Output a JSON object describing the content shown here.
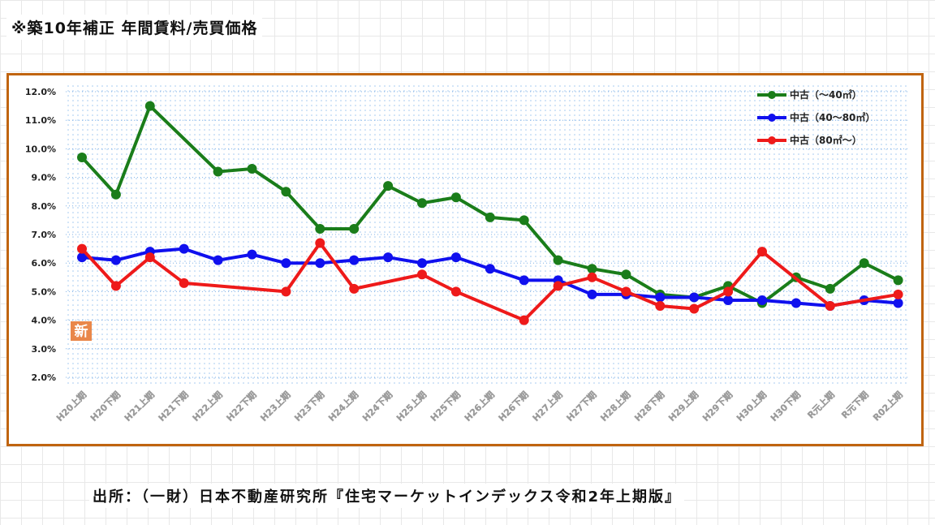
{
  "title": "※築10年補正 年間賃料/売買価格",
  "source": "出所：（一財）日本不動産研究所『住宅マーケットインデックス令和2年上期版』",
  "new_badge": "新",
  "chart_data": {
    "type": "line",
    "categories": [
      "H20上期",
      "H20下期",
      "H21上期",
      "H21下期",
      "H22上期",
      "H22下期",
      "H23上期",
      "H23下期",
      "H24上期",
      "H24下期",
      "H25上期",
      "H25下期",
      "H26上期",
      "H26下期",
      "H27上期",
      "H27下期",
      "H28上期",
      "H28下期",
      "H29上期",
      "H29下期",
      "H30上期",
      "H30下期",
      "R元上期",
      "R元下期",
      "R02上期"
    ],
    "yticks": [
      "12.0%",
      "11.0%",
      "10.0%",
      "9.0%",
      "8.0%",
      "7.0%",
      "6.0%",
      "5.0%",
      "4.0%",
      "3.0%",
      "2.0%"
    ],
    "ylim": [
      2,
      12
    ],
    "grid": true,
    "legend_position": "top-right",
    "series": [
      {
        "name": "中古（～40㎡）",
        "color": "#1a7d1a",
        "values": [
          9.7,
          8.4,
          11.5,
          null,
          9.2,
          9.3,
          8.5,
          7.2,
          7.2,
          8.7,
          8.1,
          8.3,
          7.6,
          7.5,
          6.1,
          5.8,
          5.6,
          4.9,
          4.8,
          5.2,
          4.6,
          5.5,
          5.1,
          6.0,
          5.4
        ]
      },
      {
        "name": "中古（40～80㎡）",
        "color": "#1010ee",
        "values": [
          6.2,
          6.1,
          6.4,
          6.5,
          6.1,
          6.3,
          6.0,
          6.0,
          6.1,
          6.2,
          6.0,
          6.2,
          5.8,
          5.4,
          5.4,
          4.9,
          4.9,
          4.8,
          4.8,
          4.7,
          4.7,
          4.6,
          4.5,
          4.7,
          4.6
        ]
      },
      {
        "name": "中古（80㎡～）",
        "color": "#ee1a1a",
        "values": [
          6.5,
          5.2,
          6.2,
          5.3,
          null,
          null,
          5.0,
          6.7,
          5.1,
          null,
          5.6,
          5.0,
          null,
          4.0,
          5.2,
          5.5,
          5.0,
          4.5,
          4.4,
          5.0,
          6.4,
          null,
          4.5,
          null,
          4.9
        ]
      }
    ]
  }
}
